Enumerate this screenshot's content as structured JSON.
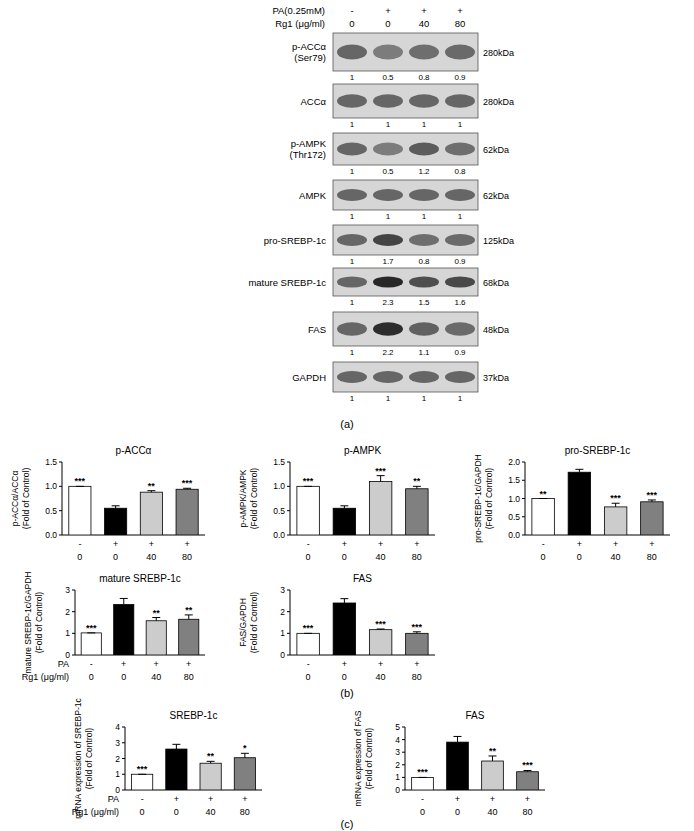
{
  "panel_labels": [
    "(a)",
    "(b)",
    "(c)"
  ],
  "blot": {
    "header": [
      {
        "label": "PA(0.25mM)",
        "values": [
          "-",
          "+",
          "+",
          "+"
        ]
      },
      {
        "label": "Rg1 (μg/ml)",
        "values": [
          "0",
          "0",
          "40",
          "80"
        ]
      }
    ],
    "rows": [
      {
        "label": [
          "p-ACCα",
          "(Ser79)"
        ],
        "quant": [
          1,
          0.5,
          0.8,
          0.9
        ],
        "size": "280kDa"
      },
      {
        "label": [
          "ACCα"
        ],
        "quant": [
          1,
          1,
          1,
          1
        ],
        "size": "280kDa"
      },
      {
        "label": [
          "p-AMPK",
          "(Thr172)"
        ],
        "quant": [
          1,
          0.5,
          1.2,
          0.8
        ],
        "size": "62kDa"
      },
      {
        "label": [
          "AMPK"
        ],
        "quant": [
          1,
          1,
          1,
          1
        ],
        "size": "62kDa"
      },
      {
        "label": [
          "pro-SREBP-1c"
        ],
        "quant": [
          1,
          1.7,
          0.8,
          0.9
        ],
        "size": "125kDa"
      },
      {
        "label": [
          "mature SREBP-1c"
        ],
        "quant": [
          1,
          2.3,
          1.5,
          1.6
        ],
        "size": "68kDa"
      },
      {
        "label": [
          "FAS"
        ],
        "quant": [
          1,
          2.2,
          1.1,
          0.9
        ],
        "size": "48kDa"
      },
      {
        "label": [
          "GAPDH"
        ],
        "quant": [
          1,
          1,
          1,
          1
        ],
        "size": "37kDa"
      }
    ]
  },
  "chart_data": [
    {
      "type": "bar",
      "title": "p-ACCα",
      "y_label": [
        "p-ACCα/ACCα",
        "(Fold of Control)"
      ],
      "ylim": [
        0,
        1.5
      ],
      "yticks": [
        {
          "value": 0,
          "label": "0.0"
        },
        0.5,
        {
          "value": 1,
          "label": "1.0"
        },
        1.5
      ],
      "values": [
        1,
        0.55,
        0.88,
        0.94
      ],
      "errors": [
        0,
        0.05,
        0.03,
        0.02
      ],
      "colors": [
        "#ffffff",
        "#000000",
        "#cccccc",
        "#808080"
      ],
      "significance": [
        "***",
        null,
        "**",
        "***"
      ],
      "x_rows": [
        {
          "label": null,
          "values": [
            "-",
            "+",
            "+",
            "+"
          ]
        },
        {
          "label": null,
          "values": [
            "0",
            "0",
            "40",
            "80"
          ]
        }
      ]
    },
    {
      "type": "bar",
      "title": "p-AMPK",
      "y_label": [
        "p-AMPK/AMPK",
        "(Fold of Control)"
      ],
      "ylim": [
        0,
        1.5
      ],
      "yticks": [
        {
          "value": 0,
          "label": "0.0"
        },
        0.5,
        {
          "value": 1,
          "label": "1.0"
        },
        1.5
      ],
      "values": [
        1,
        0.55,
        1.1,
        0.95
      ],
      "errors": [
        0,
        0.05,
        0.12,
        0.05
      ],
      "colors": [
        "#ffffff",
        "#000000",
        "#cccccc",
        "#808080"
      ],
      "significance": [
        "***",
        null,
        "***",
        "**"
      ],
      "x_rows": [
        {
          "label": null,
          "values": [
            "-",
            "+",
            "+",
            "+"
          ]
        },
        {
          "label": null,
          "values": [
            "0",
            "0",
            "40",
            "80"
          ]
        }
      ]
    },
    {
      "type": "bar",
      "title": "pro-SREBP-1c",
      "y_label": [
        "pro-SREBP-1c/GAPDH",
        "(Fold of Control)"
      ],
      "ylim": [
        0,
        2
      ],
      "yticks": [
        {
          "value": 0,
          "label": "0.0"
        },
        0.5,
        {
          "value": 1,
          "label": "1.0"
        },
        1.5,
        {
          "value": 2,
          "label": "2.0"
        }
      ],
      "values": [
        1,
        1.72,
        0.77,
        0.91
      ],
      "errors": [
        0,
        0.08,
        0.1,
        0.05
      ],
      "colors": [
        "#ffffff",
        "#000000",
        "#cccccc",
        "#808080"
      ],
      "significance": [
        "**",
        null,
        "***",
        "***"
      ],
      "x_rows": [
        {
          "label": null,
          "values": [
            "-",
            "+",
            "+",
            "+"
          ]
        },
        {
          "label": null,
          "values": [
            "0",
            "0",
            "40",
            "80"
          ]
        }
      ]
    },
    {
      "type": "bar",
      "title": "mature SREBP-1c",
      "y_label": [
        "mature SREBP-1c/GAPDH",
        "(Fold of Control)"
      ],
      "ylim": [
        0,
        3
      ],
      "yticks": [
        0,
        1,
        2,
        3
      ],
      "values": [
        1.02,
        2.33,
        1.58,
        1.65
      ],
      "errors": [
        0,
        0.28,
        0.15,
        0.2
      ],
      "colors": [
        "#ffffff",
        "#000000",
        "#cccccc",
        "#808080"
      ],
      "significance": [
        "***",
        null,
        "**",
        "**"
      ],
      "x_rows": [
        {
          "label": "PA",
          "values": [
            "-",
            "+",
            "+",
            "+"
          ]
        },
        {
          "label": "Rg1 (μg/ml)",
          "values": [
            "0",
            "0",
            "40",
            "80"
          ]
        }
      ]
    },
    {
      "type": "bar",
      "title": "FAS",
      "y_label": [
        "FAS/GAPDH",
        "(Fold of Control)"
      ],
      "ylim": [
        0,
        3
      ],
      "yticks": [
        0,
        1,
        2,
        3
      ],
      "values": [
        1,
        2.4,
        1.17,
        1
      ],
      "errors": [
        0,
        0.2,
        0.03,
        0.07
      ],
      "colors": [
        "#ffffff",
        "#000000",
        "#cccccc",
        "#808080"
      ],
      "significance": [
        "***",
        null,
        "***",
        "***"
      ],
      "x_rows": [
        {
          "label": null,
          "values": [
            "-",
            "+",
            "+",
            "+"
          ]
        },
        {
          "label": null,
          "values": [
            "0",
            "0",
            "40",
            "80"
          ]
        }
      ]
    },
    {
      "type": "bar",
      "title": "SREBP-1c",
      "y_label": [
        "mRNA expression of SREBP-1c",
        "(Fold of Control)"
      ],
      "ylim": [
        0,
        4
      ],
      "yticks": [
        0,
        1,
        2,
        3,
        4
      ],
      "values": [
        1,
        2.6,
        1.7,
        2.05
      ],
      "errors": [
        0,
        0.3,
        0.12,
        0.28
      ],
      "colors": [
        "#ffffff",
        "#000000",
        "#cccccc",
        "#808080"
      ],
      "significance": [
        "***",
        null,
        "**",
        "*"
      ],
      "x_rows": [
        {
          "label": "PA",
          "values": [
            "-",
            "+",
            "+",
            "+"
          ]
        },
        {
          "label": "Rg1 (μg/ml)",
          "values": [
            "0",
            "0",
            "40",
            "80"
          ]
        }
      ]
    },
    {
      "type": "bar",
      "title": "FAS",
      "y_label": [
        "mRNA expression of FAS",
        "(Fold of Control)"
      ],
      "ylim": [
        0,
        5
      ],
      "yticks": [
        0,
        1,
        2,
        3,
        4,
        5
      ],
      "values": [
        1,
        3.8,
        2.3,
        1.45
      ],
      "errors": [
        0,
        0.45,
        0.4,
        0.1
      ],
      "colors": [
        "#ffffff",
        "#000000",
        "#cccccc",
        "#808080"
      ],
      "significance": [
        "***",
        null,
        "**",
        "***"
      ],
      "x_rows": [
        {
          "label": null,
          "values": [
            "-",
            "+",
            "+",
            "+"
          ]
        },
        {
          "label": null,
          "values": [
            "0",
            "0",
            "40",
            "80"
          ]
        }
      ]
    }
  ]
}
